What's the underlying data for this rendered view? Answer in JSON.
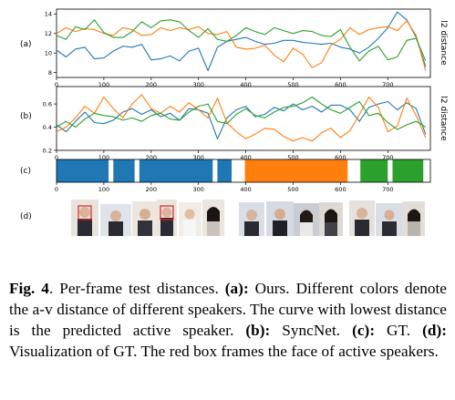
{
  "panel_labels": [
    "(a)",
    "(b)",
    "(c)",
    "(d)"
  ],
  "colors": {
    "speaker_1": "#1f77b4",
    "speaker_2": "#ff7f0e",
    "speaker_3": "#2ca02c"
  },
  "chart_data": [
    {
      "type": "line",
      "panel": "(a)",
      "ylabel": "l2 distance",
      "xlim": [
        0,
        790
      ],
      "ylim": [
        7.5,
        14.5
      ],
      "xticks": [
        0,
        100,
        200,
        300,
        400,
        500,
        600,
        700
      ],
      "yticks": [
        8,
        10,
        12,
        14
      ],
      "series": [
        {
          "color": "#1f77b4",
          "x": [
            0,
            20,
            40,
            60,
            80,
            100,
            120,
            140,
            160,
            180,
            200,
            220,
            240,
            260,
            280,
            300,
            320,
            340,
            360,
            380,
            400,
            420,
            440,
            460,
            480,
            500,
            520,
            540,
            560,
            580,
            600,
            620,
            640,
            660,
            680,
            700,
            720,
            740,
            760,
            780
          ],
          "y": [
            10.3,
            9.6,
            10.4,
            10.6,
            9.4,
            9.5,
            10.2,
            10.7,
            10.6,
            10.9,
            9.3,
            9.4,
            9.7,
            9.2,
            10.2,
            10.5,
            8.2,
            10.6,
            11.2,
            11.4,
            11.6,
            11.2,
            10.9,
            11.0,
            11.3,
            11.3,
            11.1,
            11.0,
            10.9,
            11.0,
            10.6,
            10.4,
            10.0,
            10.6,
            11.5,
            12.6,
            14.2,
            13.4,
            11.6,
            8.6
          ]
        },
        {
          "color": "#ff7f0e",
          "x": [
            0,
            20,
            40,
            60,
            80,
            100,
            120,
            140,
            160,
            180,
            200,
            220,
            240,
            260,
            280,
            300,
            320,
            340,
            360,
            380,
            400,
            420,
            440,
            460,
            480,
            500,
            520,
            540,
            560,
            580,
            600,
            620,
            640,
            660,
            680,
            700,
            720,
            740,
            760,
            780
          ],
          "y": [
            12.0,
            12.6,
            12.2,
            12.5,
            12.4,
            12.0,
            11.8,
            12.6,
            12.4,
            11.8,
            11.9,
            12.6,
            12.3,
            12.6,
            12.4,
            12.7,
            12.0,
            11.9,
            12.2,
            10.6,
            10.4,
            10.5,
            10.8,
            9.8,
            9.1,
            10.5,
            9.9,
            8.5,
            9.0,
            10.8,
            11.4,
            12.6,
            11.9,
            12.4,
            12.6,
            12.7,
            12.3,
            13.3,
            11.8,
            8.2
          ]
        },
        {
          "color": "#2ca02c",
          "x": [
            0,
            20,
            40,
            60,
            80,
            100,
            120,
            140,
            160,
            180,
            200,
            220,
            240,
            260,
            280,
            300,
            320,
            340,
            360,
            380,
            400,
            420,
            440,
            460,
            480,
            500,
            520,
            540,
            560,
            580,
            600,
            620,
            640,
            660,
            680,
            700,
            720,
            740,
            760,
            780
          ],
          "y": [
            11.8,
            11.4,
            12.7,
            12.4,
            13.4,
            12.1,
            11.6,
            11.6,
            12.2,
            13.2,
            12.6,
            13.3,
            13.4,
            13.2,
            12.3,
            11.6,
            12.5,
            11.4,
            11.2,
            11.8,
            12.6,
            12.2,
            11.9,
            12.6,
            12.3,
            12.0,
            12.3,
            12.2,
            11.8,
            11.7,
            12.4,
            10.6,
            9.2,
            10.2,
            10.7,
            9.3,
            9.6,
            11.3,
            11.5,
            9.2
          ]
        }
      ]
    },
    {
      "type": "line",
      "panel": "(b)",
      "ylabel": "l2 distance",
      "xlim": [
        0,
        790
      ],
      "ylim": [
        0.2,
        0.75
      ],
      "xticks": [
        0,
        100,
        200,
        300,
        400,
        500,
        600,
        700
      ],
      "yticks": [
        0.2,
        0.4,
        0.6
      ],
      "series": [
        {
          "color": "#1f77b4",
          "x": [
            0,
            20,
            40,
            60,
            80,
            100,
            120,
            140,
            160,
            180,
            200,
            220,
            240,
            260,
            280,
            300,
            320,
            340,
            360,
            380,
            400,
            420,
            440,
            460,
            480,
            500,
            520,
            540,
            560,
            580,
            600,
            620,
            640,
            660,
            680,
            700,
            720,
            740,
            760,
            780
          ],
          "y": [
            0.42,
            0.36,
            0.45,
            0.53,
            0.44,
            0.43,
            0.46,
            0.53,
            0.56,
            0.51,
            0.55,
            0.49,
            0.52,
            0.46,
            0.56,
            0.55,
            0.52,
            0.3,
            0.48,
            0.55,
            0.58,
            0.49,
            0.51,
            0.57,
            0.54,
            0.6,
            0.55,
            0.58,
            0.53,
            0.59,
            0.59,
            0.55,
            0.45,
            0.57,
            0.6,
            0.62,
            0.55,
            0.61,
            0.56,
            0.34
          ]
        },
        {
          "color": "#ff7f0e",
          "x": [
            0,
            20,
            40,
            60,
            80,
            100,
            120,
            140,
            160,
            180,
            200,
            220,
            240,
            260,
            280,
            300,
            320,
            340,
            360,
            380,
            400,
            420,
            440,
            460,
            480,
            500,
            520,
            540,
            560,
            580,
            600,
            620,
            640,
            660,
            680,
            700,
            720,
            740,
            760,
            780
          ],
          "y": [
            0.36,
            0.4,
            0.48,
            0.58,
            0.52,
            0.66,
            0.56,
            0.48,
            0.6,
            0.68,
            0.56,
            0.52,
            0.58,
            0.53,
            0.61,
            0.55,
            0.48,
            0.65,
            0.44,
            0.36,
            0.3,
            0.34,
            0.39,
            0.38,
            0.32,
            0.28,
            0.31,
            0.28,
            0.35,
            0.39,
            0.31,
            0.37,
            0.51,
            0.66,
            0.57,
            0.36,
            0.41,
            0.65,
            0.5,
            0.31
          ]
        },
        {
          "color": "#2ca02c",
          "x": [
            0,
            20,
            40,
            60,
            80,
            100,
            120,
            140,
            160,
            180,
            200,
            220,
            240,
            260,
            280,
            300,
            320,
            340,
            360,
            380,
            400,
            420,
            440,
            460,
            480,
            500,
            520,
            540,
            560,
            580,
            600,
            620,
            640,
            660,
            680,
            700,
            720,
            740,
            760,
            780
          ],
          "y": [
            0.4,
            0.45,
            0.4,
            0.47,
            0.52,
            0.5,
            0.49,
            0.46,
            0.48,
            0.45,
            0.5,
            0.52,
            0.47,
            0.46,
            0.53,
            0.58,
            0.6,
            0.45,
            0.43,
            0.51,
            0.56,
            0.5,
            0.48,
            0.53,
            0.57,
            0.58,
            0.61,
            0.66,
            0.6,
            0.55,
            0.52,
            0.57,
            0.62,
            0.5,
            0.52,
            0.44,
            0.38,
            0.42,
            0.45,
            0.4
          ]
        }
      ]
    },
    {
      "type": "bar",
      "panel": "(c)",
      "xlim": [
        0,
        790
      ],
      "xticks": [
        0,
        100,
        200,
        300,
        400,
        500,
        600,
        700
      ],
      "segments": [
        {
          "start": 0,
          "end": 110,
          "color": "#1f77b4"
        },
        {
          "start": 120,
          "end": 165,
          "color": "#1f77b4"
        },
        {
          "start": 175,
          "end": 330,
          "color": "#1f77b4"
        },
        {
          "start": 340,
          "end": 370,
          "color": "#1f77b4"
        },
        {
          "start": 398,
          "end": 615,
          "color": "#ff7f0e"
        },
        {
          "start": 642,
          "end": 700,
          "color": "#2ca02c"
        },
        {
          "start": 710,
          "end": 775,
          "color": "#2ca02c"
        }
      ]
    }
  ],
  "caption": {
    "fig_label": "Fig. 4",
    "t1": ". Per-frame test distances. ",
    "a_label": "(a):",
    "t2": " Ours. Different colors denote the a-v distance of different speakers. The curve with lowest distance is the predicted active speaker. ",
    "b_label": "(b):",
    "t3": " SyncNet. ",
    "c_label": "(c):",
    "t4": " GT. ",
    "d_label": "(d):",
    "t5": " Visualization of GT. The red box frames the face of active speakers."
  }
}
